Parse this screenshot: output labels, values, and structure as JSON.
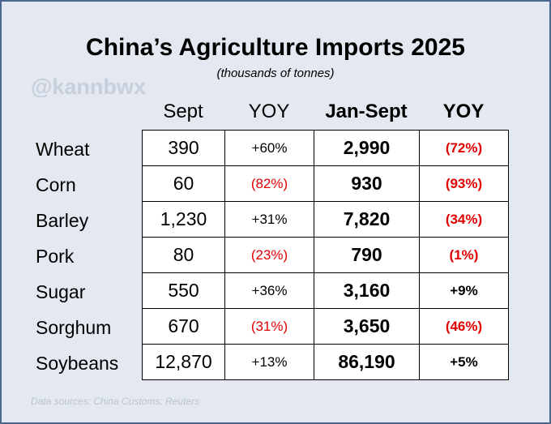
{
  "header": {
    "title": "China’s Agriculture Imports 2025",
    "subtitle": "(thousands of tonnes)",
    "watermark": "@kannbwx"
  },
  "table": {
    "columns": [
      "Sept",
      "YOY",
      "Jan-Sept",
      "YOY"
    ],
    "rows": [
      {
        "label": "Wheat",
        "cells": [
          "390",
          "+60%",
          "2,990",
          "(72%)"
        ]
      },
      {
        "label": "Corn",
        "cells": [
          "60",
          "(82%)",
          "930",
          "(93%)"
        ]
      },
      {
        "label": "Barley",
        "cells": [
          "1,230",
          "+31%",
          "7,820",
          "(34%)"
        ]
      },
      {
        "label": "Pork",
        "cells": [
          "80",
          "(23%)",
          "790",
          "(1%)"
        ]
      },
      {
        "label": "Sugar",
        "cells": [
          "550",
          "+36%",
          "3,160",
          "+9%"
        ]
      },
      {
        "label": "Sorghum",
        "cells": [
          "670",
          "(31%)",
          "3,650",
          "(46%)"
        ]
      },
      {
        "label": "Soybeans",
        "cells": [
          "12,870",
          "+13%",
          "86,190",
          "+5%"
        ]
      }
    ]
  },
  "footer": {
    "source": "Data sources: China Customs; Reuters"
  }
}
